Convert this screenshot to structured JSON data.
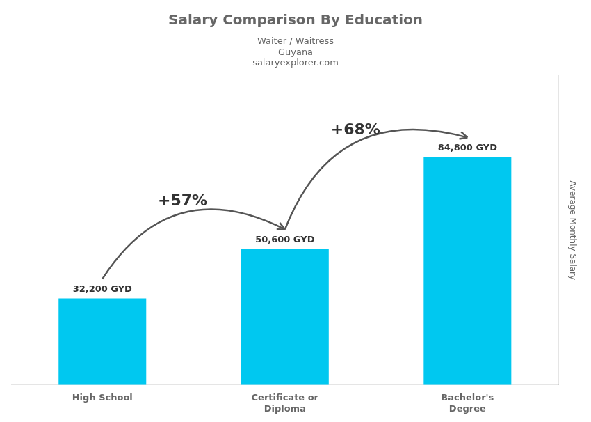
{
  "chart_data": {
    "type": "bar",
    "title": "Salary Comparison By Education",
    "subtitle": "Waiter / Waitress",
    "ylabel": "Average Monthly Salary",
    "categories": [
      "High School",
      "Certificate or\nDiploma",
      "Bachelor's\nDegree"
    ],
    "values": [
      32200,
      50600,
      84800
    ],
    "value_labels": [
      "32,200 GYD",
      "50,600 GYD",
      "84,800 GYD"
    ],
    "data_labels": true,
    "color": "#00c8f0",
    "ylim": [
      0,
      115000
    ],
    "tick_labels": "x",
    "grid": false,
    "annotations": [
      {
        "text": "Guyana"
      },
      {
        "text": "salaryexplorer.com"
      },
      {
        "text": "+57%",
        "from": "High School",
        "to": "Certificate or\nDiploma"
      },
      {
        "text": "+68%",
        "from": "Certificate or\nDiploma",
        "to": "Bachelor's\nDegree"
      }
    ]
  }
}
